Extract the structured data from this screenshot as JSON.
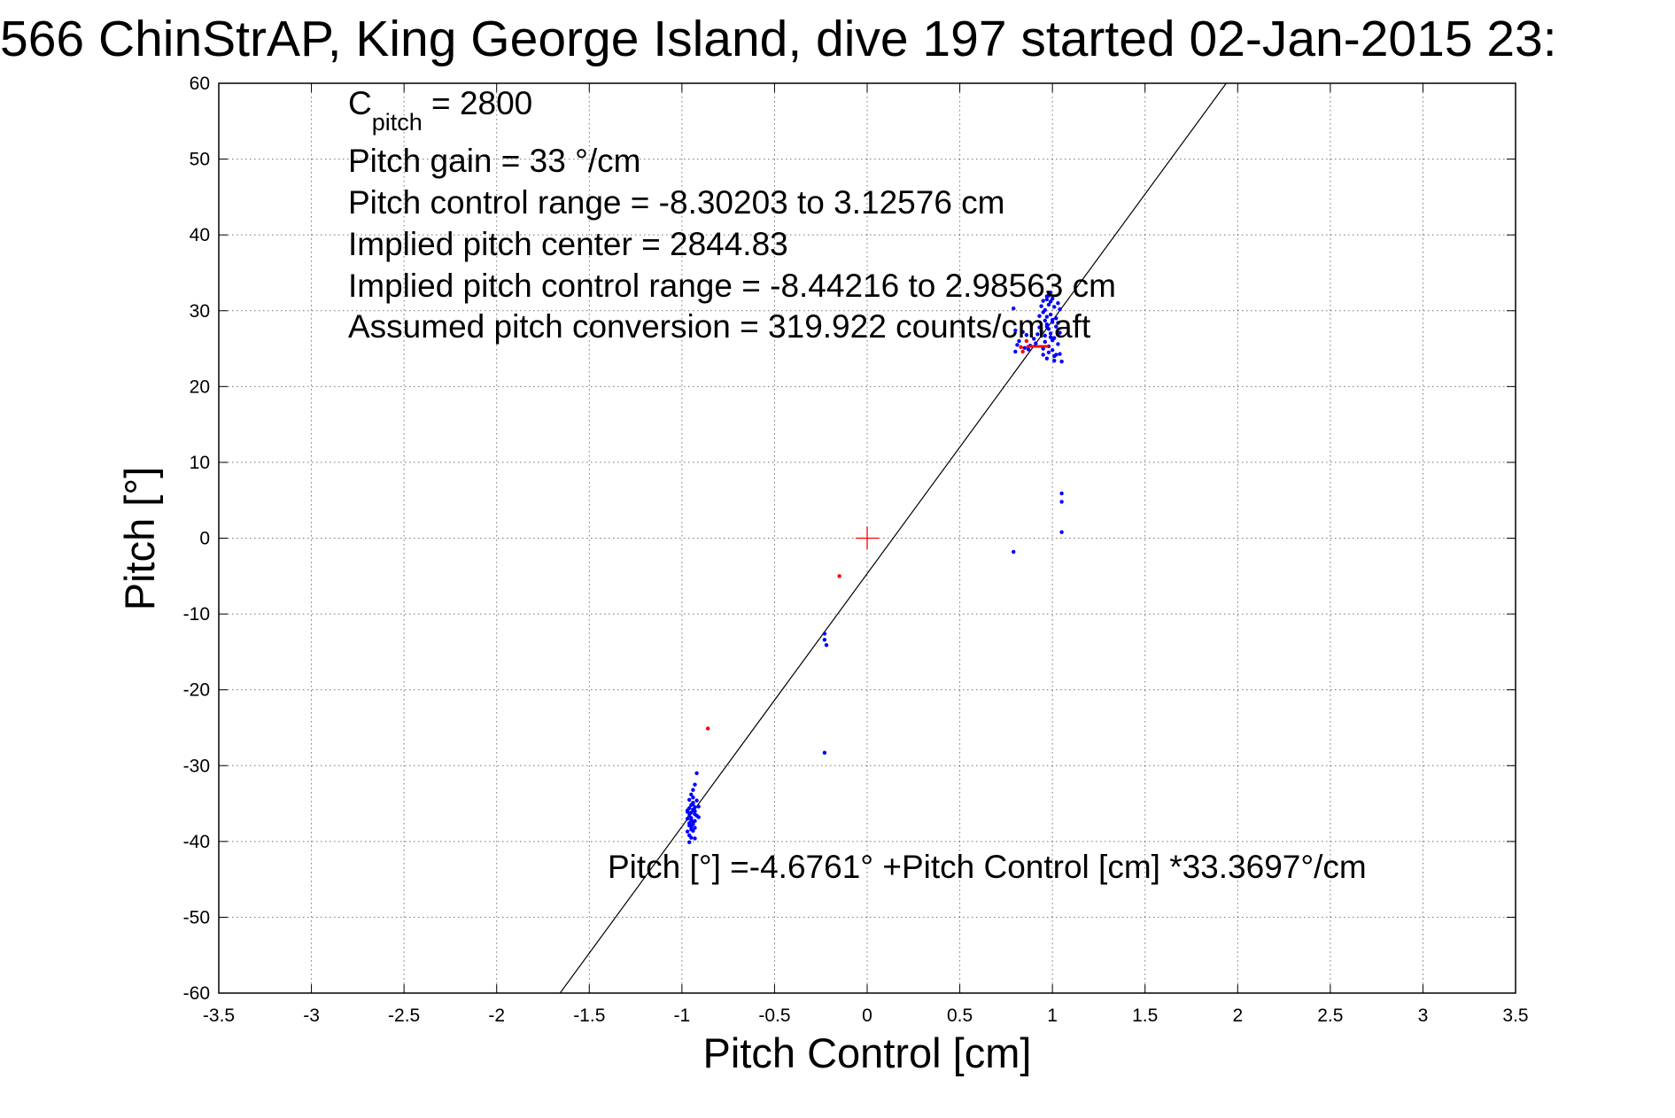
{
  "chart_data": {
    "type": "scatter",
    "title": "566 ChinStrAP, King George Island, dive 197 started 02-Jan-2015 23:",
    "xlabel": "Pitch Control [cm]",
    "ylabel": "Pitch [°]",
    "xlim": [
      -3.5,
      3.5
    ],
    "ylim": [
      -60,
      60
    ],
    "xticks": [
      -3.5,
      -3,
      -2.5,
      -2,
      -1.5,
      -1,
      -0.5,
      0,
      0.5,
      1,
      1.5,
      2,
      2.5,
      3,
      3.5
    ],
    "yticks": [
      -60,
      -50,
      -40,
      -30,
      -20,
      -10,
      0,
      10,
      20,
      30,
      40,
      50,
      60
    ],
    "xtick_labels": [
      "-3.5",
      "-3",
      "-2.5",
      "-2",
      "-1.5",
      "-1",
      "-0.5",
      "0",
      "0.5",
      "1",
      "1.5",
      "2",
      "2.5",
      "3",
      "3.5"
    ],
    "ytick_labels": [
      "-60",
      "-50",
      "-40",
      "-30",
      "-20",
      "-10",
      "0",
      "10",
      "20",
      "30",
      "40",
      "50",
      "60"
    ],
    "grid": true,
    "legend": "none",
    "annotations": {
      "c_pitch_main": "C",
      "c_pitch_sub": "pitch",
      "c_pitch_value": " = 2800",
      "lines": [
        "Pitch gain = 33 °/cm",
        "Pitch control range = -8.30203 to 3.12576 cm",
        "Implied pitch center = 2844.83",
        "Implied pitch control range = -8.44216 to 2.98563 cm",
        "Assumed pitch conversion = 319.922 counts/cm aft"
      ],
      "fit_equation": "Pitch [°] =-4.6761° +Pitch Control [cm] *33.3697°/cm"
    },
    "fit_line": {
      "intercept": -4.6761,
      "slope": 33.3697
    },
    "center_marker": {
      "x": 0,
      "y": 0
    },
    "red_bar": {
      "x": [
        0.86,
        0.98
      ],
      "y": 25.3
    },
    "series": [
      {
        "color": "#0000ff",
        "points": [
          [
            -0.96,
            -34.5
          ],
          [
            -0.95,
            -35.2
          ],
          [
            -0.94,
            -35.8
          ],
          [
            -0.96,
            -36.3
          ],
          [
            -0.95,
            -36.9
          ],
          [
            -0.94,
            -37.4
          ],
          [
            -0.96,
            -37.9
          ],
          [
            -0.95,
            -38.4
          ],
          [
            -0.94,
            -34.9
          ],
          [
            -0.93,
            -35.5
          ],
          [
            -0.97,
            -36.1
          ],
          [
            -0.96,
            -36.7
          ],
          [
            -0.95,
            -37.2
          ],
          [
            -0.94,
            -37.7
          ],
          [
            -0.93,
            -38.2
          ],
          [
            -0.97,
            -38.7
          ],
          [
            -0.96,
            -39.2
          ],
          [
            -0.95,
            -33.8
          ],
          [
            -0.94,
            -34.2
          ],
          [
            -0.93,
            -36.0
          ],
          [
            -0.92,
            -36.6
          ],
          [
            -0.96,
            -37.6
          ],
          [
            -0.95,
            -38.0
          ],
          [
            -0.94,
            -35.1
          ],
          [
            -0.93,
            -36.4
          ],
          [
            -0.97,
            -37.0
          ],
          [
            -0.96,
            -35.6
          ],
          [
            -0.95,
            -36.2
          ],
          [
            -0.94,
            -38.6
          ],
          [
            -0.93,
            -37.3
          ],
          [
            -0.92,
            -34.6
          ],
          [
            -0.91,
            -35.4
          ],
          [
            -0.95,
            -39.5
          ],
          [
            -0.94,
            -33.2
          ],
          [
            -0.92,
            -31.0
          ],
          [
            -0.93,
            -32.5
          ],
          [
            -0.96,
            -40.1
          ],
          [
            -0.93,
            -39.6
          ],
          [
            -0.91,
            -36.8
          ],
          [
            -0.97,
            -35.9
          ],
          [
            -0.23,
            -12.6
          ],
          [
            -0.23,
            -13.4
          ],
          [
            -0.22,
            -14.1
          ],
          [
            -0.23,
            -28.3
          ],
          [
            0.79,
            -1.8
          ],
          [
            1.05,
            5.9
          ],
          [
            1.05,
            4.8
          ],
          [
            1.05,
            0.8
          ],
          [
            0.97,
            31.5
          ],
          [
            0.98,
            30.8
          ],
          [
            0.96,
            30.1
          ],
          [
            0.99,
            29.5
          ],
          [
            1.0,
            28.8
          ],
          [
            0.97,
            28.2
          ],
          [
            0.98,
            27.6
          ],
          [
            0.99,
            27.0
          ],
          [
            1.01,
            26.4
          ],
          [
            0.96,
            25.9
          ],
          [
            0.98,
            25.3
          ],
          [
            1.0,
            24.8
          ],
          [
            1.02,
            24.2
          ],
          [
            0.97,
            31.9
          ],
          [
            0.99,
            31.2
          ],
          [
            1.01,
            30.5
          ],
          [
            0.95,
            29.8
          ],
          [
            0.97,
            29.2
          ],
          [
            1.0,
            28.5
          ],
          [
            1.02,
            27.9
          ],
          [
            0.94,
            27.3
          ],
          [
            0.96,
            26.7
          ],
          [
            1.0,
            26.1
          ],
          [
            1.03,
            25.6
          ],
          [
            0.95,
            25.0
          ],
          [
            0.98,
            24.5
          ],
          [
            1.01,
            24.0
          ],
          [
            0.93,
            27.8
          ],
          [
            0.92,
            26.9
          ],
          [
            0.91,
            25.7
          ],
          [
            0.9,
            26.3
          ],
          [
            0.88,
            25.4
          ],
          [
            0.87,
            24.9
          ],
          [
            0.86,
            26.8
          ],
          [
            0.85,
            25.1
          ],
          [
            0.84,
            27.2
          ],
          [
            0.82,
            26.0
          ],
          [
            0.81,
            25.5
          ],
          [
            0.8,
            24.6
          ],
          [
            0.79,
            30.3
          ],
          [
            0.8,
            27.4
          ],
          [
            1.04,
            24.3
          ],
          [
            1.05,
            23.3
          ],
          [
            1.03,
            28.4
          ],
          [
            1.04,
            30.2
          ],
          [
            1.02,
            29.0
          ],
          [
            0.99,
            32.4
          ],
          [
            0.98,
            32.0
          ],
          [
            1.0,
            31.6
          ],
          [
            0.96,
            28.7
          ],
          [
            0.95,
            24.2
          ],
          [
            0.97,
            23.7
          ],
          [
            1.01,
            23.4
          ],
          [
            1.04,
            27.1
          ],
          [
            0.99,
            26.5
          ],
          [
            0.97,
            27.9
          ],
          [
            0.94,
            30.6
          ],
          [
            0.93,
            29.3
          ],
          [
            1.03,
            31.0
          ],
          [
            0.95,
            31.3
          ]
        ]
      },
      {
        "color": "#ff0000",
        "points": [
          [
            -0.15,
            -5.0
          ],
          [
            -0.86,
            -25.1
          ],
          [
            0.84,
            24.6
          ],
          [
            0.83,
            25.2
          ],
          [
            0.86,
            26.0
          ]
        ]
      }
    ]
  }
}
